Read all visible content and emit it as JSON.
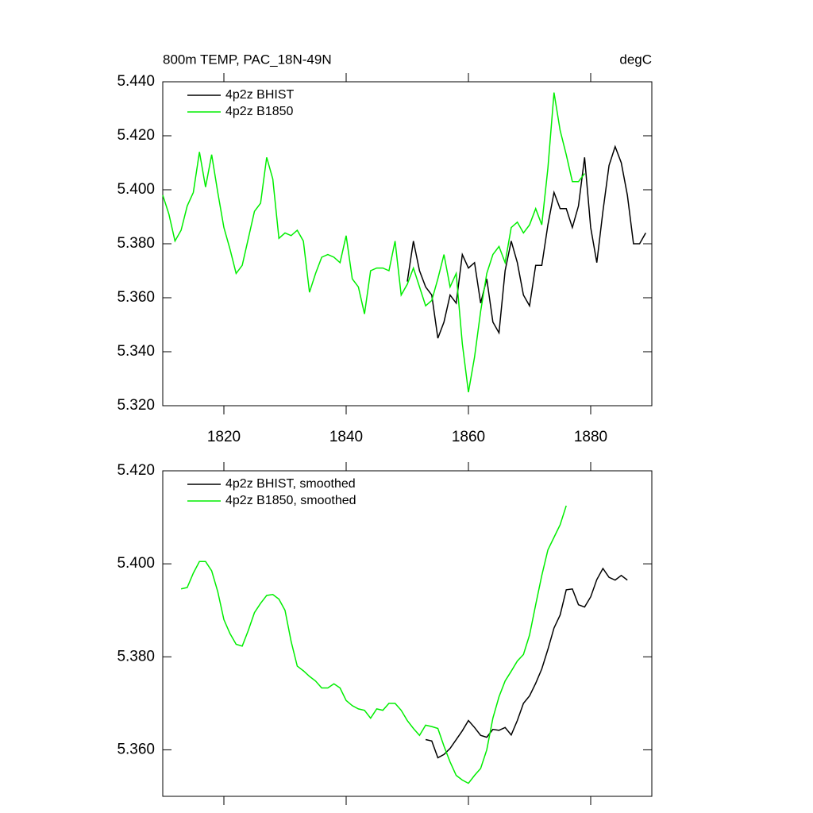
{
  "chart_data": [
    {
      "type": "line",
      "title": "800m TEMP, PAC_18N-49N",
      "units": "degC",
      "legend": "upper left",
      "xlim": [
        1810,
        1890
      ],
      "xticks": [
        1820,
        1840,
        1860,
        1880
      ],
      "ylim": [
        5.32,
        5.44
      ],
      "yticks": [
        {
          "value": 5.32,
          "label": "5.320"
        },
        {
          "value": 5.34,
          "label": "5.340"
        },
        {
          "value": 5.36,
          "label": "5.360"
        },
        {
          "value": 5.38,
          "label": "5.380"
        },
        {
          "value": 5.4,
          "label": "5.400"
        },
        {
          "value": 5.42,
          "label": "5.420"
        },
        {
          "value": 5.44,
          "label": "5.440"
        }
      ],
      "series": [
        {
          "name": "4p2z BHIST",
          "color": "#000000",
          "x": [
            1850,
            1851,
            1852,
            1853,
            1854,
            1855,
            1856,
            1857,
            1858,
            1859,
            1860,
            1861,
            1862,
            1863,
            1864,
            1865,
            1866,
            1867,
            1868,
            1869,
            1870,
            1871,
            1872,
            1873,
            1874,
            1875,
            1876,
            1877,
            1878,
            1879,
            1880,
            1881,
            1882,
            1883,
            1884,
            1885,
            1886,
            1887,
            1888,
            1889
          ],
          "values": [
            5.366,
            5.381,
            5.37,
            5.364,
            5.361,
            5.345,
            5.351,
            5.361,
            5.358,
            5.376,
            5.371,
            5.373,
            5.358,
            5.367,
            5.351,
            5.347,
            5.37,
            5.381,
            5.373,
            5.361,
            5.357,
            5.372,
            5.372,
            5.387,
            5.399,
            5.393,
            5.393,
            5.386,
            5.394,
            5.412,
            5.386,
            5.373,
            5.392,
            5.409,
            5.416,
            5.41,
            5.398,
            5.38,
            5.38,
            5.384
          ]
        },
        {
          "name": "4p2z B1850",
          "color": "#00ee00",
          "x": [
            1810,
            1811,
            1812,
            1813,
            1814,
            1815,
            1816,
            1817,
            1818,
            1819,
            1820,
            1821,
            1822,
            1823,
            1824,
            1825,
            1826,
            1827,
            1828,
            1829,
            1830,
            1831,
            1832,
            1833,
            1834,
            1835,
            1836,
            1837,
            1838,
            1839,
            1840,
            1841,
            1842,
            1843,
            1844,
            1845,
            1846,
            1847,
            1848,
            1849,
            1850,
            1851,
            1852,
            1853,
            1854,
            1855,
            1856,
            1857,
            1858,
            1859,
            1860,
            1861,
            1862,
            1863,
            1864,
            1865,
            1866,
            1867,
            1868,
            1869,
            1870,
            1871,
            1872,
            1873,
            1874,
            1875,
            1876,
            1877,
            1878,
            1879
          ],
          "values": [
            5.398,
            5.391,
            5.381,
            5.385,
            5.394,
            5.399,
            5.414,
            5.401,
            5.413,
            5.399,
            5.386,
            5.378,
            5.369,
            5.372,
            5.382,
            5.392,
            5.395,
            5.412,
            5.404,
            5.382,
            5.384,
            5.383,
            5.385,
            5.381,
            5.362,
            5.369,
            5.375,
            5.376,
            5.375,
            5.373,
            5.383,
            5.367,
            5.364,
            5.354,
            5.37,
            5.371,
            5.371,
            5.37,
            5.381,
            5.361,
            5.365,
            5.371,
            5.364,
            5.357,
            5.359,
            5.367,
            5.376,
            5.364,
            5.369,
            5.343,
            5.325,
            5.338,
            5.355,
            5.369,
            5.376,
            5.379,
            5.373,
            5.386,
            5.388,
            5.384,
            5.387,
            5.393,
            5.387,
            5.408,
            5.436,
            5.422,
            5.413,
            5.403,
            5.403,
            5.406
          ]
        }
      ]
    },
    {
      "type": "line",
      "legend": "upper left",
      "xlim": [
        1810,
        1890
      ],
      "xticks": [
        1820,
        1840,
        1860,
        1880
      ],
      "ylim": [
        5.35,
        5.42
      ],
      "yticks": [
        {
          "value": 5.36,
          "label": "5.360"
        },
        {
          "value": 5.38,
          "label": "5.380"
        },
        {
          "value": 5.4,
          "label": "5.400"
        },
        {
          "value": 5.42,
          "label": "5.420"
        }
      ],
      "series": [
        {
          "name": "4p2z BHIST, smoothed",
          "color": "#000000",
          "x": [
            1853,
            1854,
            1855,
            1856,
            1857,
            1858,
            1859,
            1860,
            1861,
            1862,
            1863,
            1864,
            1865,
            1866,
            1867,
            1868,
            1869,
            1870,
            1871,
            1872,
            1873,
            1874,
            1875,
            1876,
            1877,
            1878,
            1879,
            1880,
            1881,
            1882,
            1883,
            1884,
            1885,
            1886
          ],
          "values": [
            5.3622,
            5.3619,
            5.3583,
            5.359,
            5.3603,
            5.3622,
            5.3641,
            5.3663,
            5.3648,
            5.3631,
            5.3627,
            5.3644,
            5.3642,
            5.3648,
            5.3632,
            5.3663,
            5.37,
            5.3716,
            5.3743,
            5.3774,
            5.3816,
            5.3862,
            5.389,
            5.3944,
            5.3946,
            5.3912,
            5.3907,
            5.3929,
            5.3966,
            5.399,
            5.3971,
            5.3965,
            5.3975,
            5.3965
          ]
        },
        {
          "name": "4p2z B1850, smoothed",
          "color": "#00ee00",
          "x": [
            1813,
            1814,
            1815,
            1816,
            1817,
            1818,
            1819,
            1820,
            1821,
            1822,
            1823,
            1824,
            1825,
            1826,
            1827,
            1828,
            1829,
            1830,
            1831,
            1832,
            1833,
            1834,
            1835,
            1836,
            1837,
            1838,
            1839,
            1840,
            1841,
            1842,
            1843,
            1844,
            1845,
            1846,
            1847,
            1848,
            1849,
            1850,
            1851,
            1852,
            1853,
            1854,
            1855,
            1856,
            1857,
            1858,
            1859,
            1860,
            1861,
            1862,
            1863,
            1864,
            1865,
            1866,
            1867,
            1868,
            1869,
            1870,
            1871,
            1872,
            1873,
            1874,
            1875,
            1876
          ],
          "values": [
            5.3946,
            5.3949,
            5.398,
            5.4005,
            5.4005,
            5.3985,
            5.394,
            5.388,
            5.385,
            5.3827,
            5.3823,
            5.3857,
            5.3895,
            5.3915,
            5.3932,
            5.3934,
            5.3924,
            5.39,
            5.3833,
            5.378,
            5.377,
            5.3758,
            5.3748,
            5.3733,
            5.3733,
            5.3742,
            5.3733,
            5.3706,
            5.3695,
            5.3688,
            5.3685,
            5.3668,
            5.3688,
            5.3685,
            5.37,
            5.37,
            5.3685,
            5.3663,
            5.3646,
            5.3631,
            5.3653,
            5.365,
            5.3646,
            5.3608,
            5.3574,
            5.3545,
            5.3535,
            5.3528,
            5.3545,
            5.356,
            5.36,
            5.3668,
            5.3714,
            5.3748,
            5.3769,
            5.3791,
            5.3805,
            5.3847,
            5.3912,
            5.3975,
            5.403,
            5.4057,
            5.4084,
            5.4125
          ]
        }
      ]
    }
  ]
}
